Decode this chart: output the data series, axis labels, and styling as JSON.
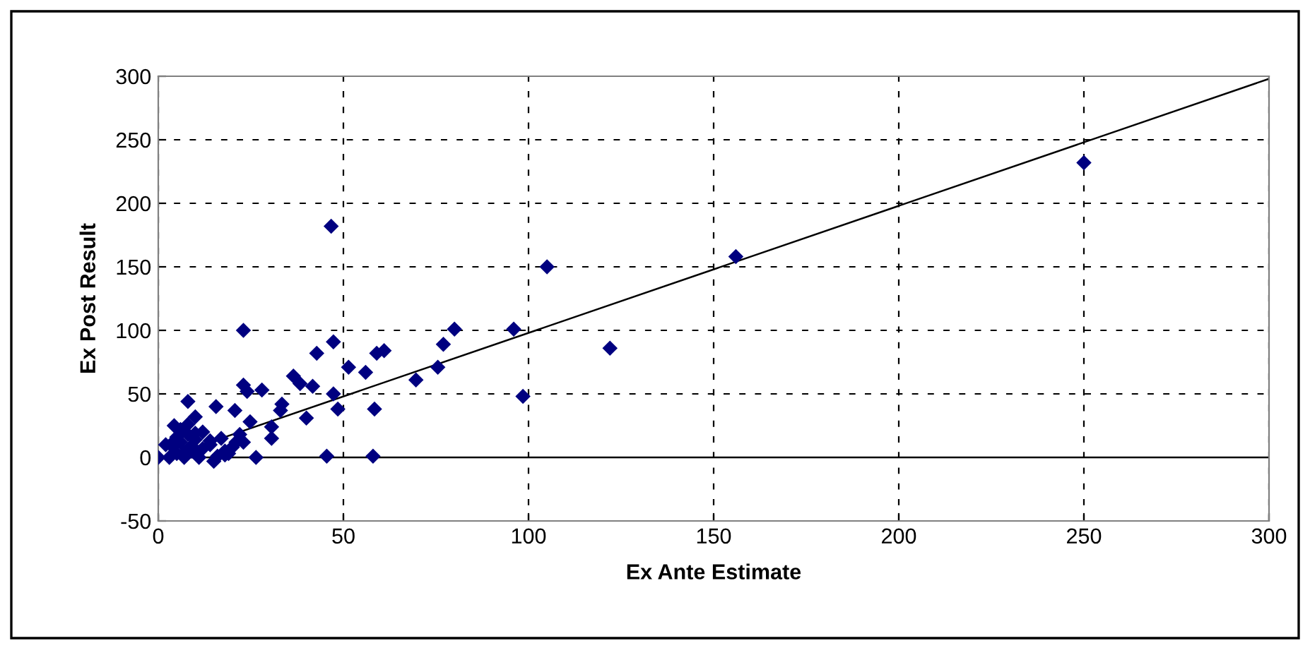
{
  "chart_data": {
    "type": "scatter",
    "xlabel": "Ex Ante Estimate",
    "ylabel": "Ex Post Result",
    "xlim": [
      0,
      300
    ],
    "xticks": [
      0,
      50,
      100,
      150,
      200,
      250,
      300
    ],
    "ylim": [
      -50,
      300
    ],
    "yticks": [
      -50,
      0,
      50,
      100,
      150,
      200,
      250,
      300
    ],
    "grid": true,
    "marker": "diamond",
    "series": [
      {
        "color": "#000080",
        "x": [
          250,
          156,
          105,
          46.7,
          96,
          80,
          122,
          98.5,
          77,
          75.5,
          69.6,
          61,
          59,
          58.4,
          58,
          56,
          51.4,
          48.5,
          47.3,
          47.3,
          45.5,
          42.8,
          41.7,
          40,
          38.3,
          36.5,
          33.4,
          33,
          30.6,
          30.6,
          28,
          26.4,
          24.8,
          24,
          23,
          23,
          20.7,
          21,
          15.6,
          8,
          10,
          4.3,
          15,
          23,
          18,
          0,
          4,
          5,
          6,
          7,
          8,
          9,
          10,
          12,
          14,
          16,
          17,
          19,
          20,
          2,
          3,
          5,
          6,
          7,
          9,
          11,
          12,
          14,
          4,
          8,
          10,
          18,
          22
        ],
        "values": [
          232,
          158,
          150,
          182,
          101,
          101,
          86,
          48,
          89,
          71,
          61,
          84,
          82,
          38,
          1,
          67,
          71,
          38,
          50,
          91,
          1,
          82,
          56,
          31,
          58,
          64,
          42,
          37,
          24,
          15,
          53,
          0,
          28,
          52,
          57,
          100,
          37,
          12,
          40,
          44,
          32,
          25,
          -3,
          12,
          5,
          0,
          8,
          3,
          12,
          0,
          18,
          5,
          14,
          20,
          10,
          1,
          15,
          3,
          8,
          10,
          0,
          16,
          22,
          4,
          9,
          0,
          7,
          13,
          12,
          26,
          19,
          2,
          18
        ]
      },
      {
        "type": "line",
        "color": "#000000",
        "marker": "none",
        "line_style": "solid",
        "x": [
          1,
          300
        ],
        "values": [
          -1,
          298
        ]
      }
    ]
  }
}
